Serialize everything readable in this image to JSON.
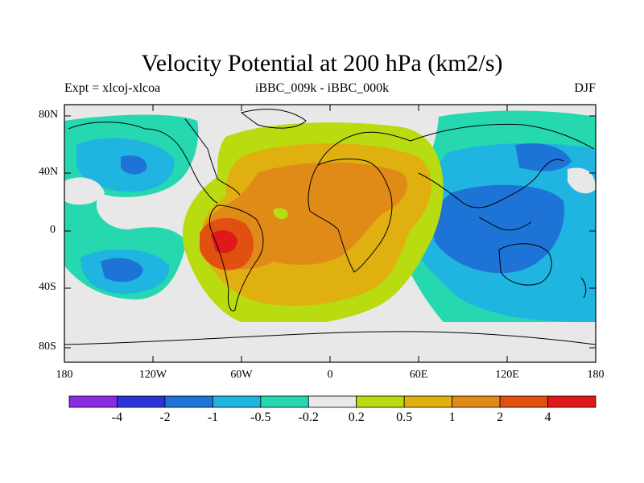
{
  "title": "Velocity Potential at 200 hPa (km2/s)",
  "subtitle_left": "Expt = xlcoj-xlcoa",
  "subtitle_center": "iBBC_009k - iBBC_000k",
  "subtitle_right": "DJF",
  "y_ticks": [
    "80N",
    "40N",
    "0",
    "40S",
    "80S"
  ],
  "x_ticks": [
    "180",
    "120W",
    "60W",
    "0",
    "60E",
    "120E",
    "180"
  ],
  "colorbar": {
    "labels": [
      "-4",
      "-2",
      "-1",
      "-0.5",
      "-0.2",
      "0.2",
      "0.5",
      "1",
      "2",
      "4"
    ],
    "colors": [
      "#8a2be2",
      "#2a34d6",
      "#1e74d6",
      "#20b4e0",
      "#26d8b0",
      "#e8e8e8",
      "#b8dc10",
      "#e0b010",
      "#e08a18",
      "#e05010",
      "#e01818"
    ]
  },
  "map": {
    "projection": "cylindrical-equidistant",
    "lon_range": [
      -180,
      180
    ],
    "lat_range": [
      -90,
      90
    ],
    "season": "DJF"
  }
}
